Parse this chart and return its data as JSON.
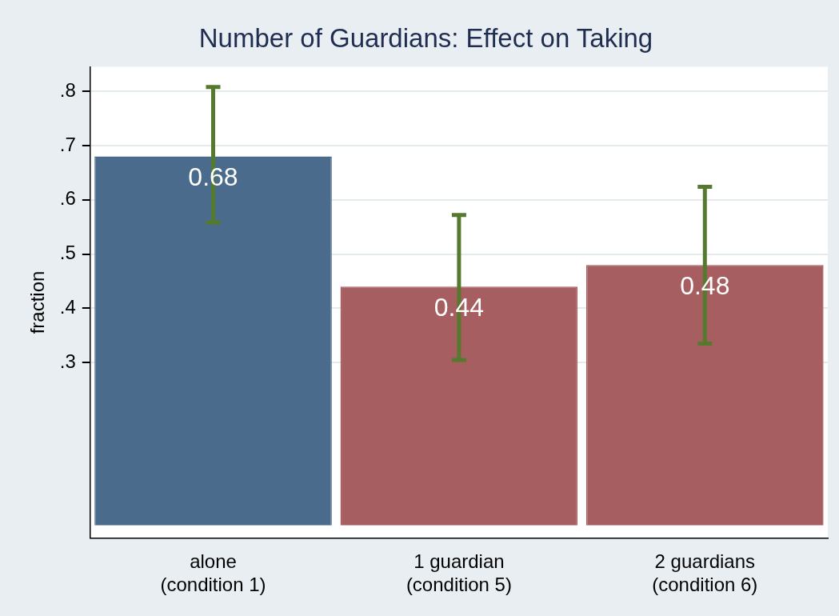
{
  "chart_data": {
    "type": "bar",
    "title": "Number of Guardians: Effect on Taking",
    "ylabel": "fraction",
    "categories": [
      "alone\n(condition 1)",
      "1 guardian\n(condition 5)",
      "2 guardians\n(condition 6)"
    ],
    "values": [
      0.68,
      0.44,
      0.48
    ],
    "colors": [
      "#4a6b8c",
      "#a65e61",
      "#a65e61"
    ],
    "errors": [
      [
        0.558,
        0.808
      ],
      [
        0.305,
        0.572
      ],
      [
        0.335,
        0.624
      ]
    ],
    "ylim": [
      -0.023,
      0.845
    ],
    "yticks": [
      {
        "value": 0.3,
        "label": ".3"
      },
      {
        "value": 0.4,
        "label": ".4"
      },
      {
        "value": 0.5,
        "label": ".5"
      },
      {
        "value": 0.6,
        "label": ".6"
      },
      {
        "value": 0.7,
        "label": ".7"
      },
      {
        "value": 0.8,
        "label": ".8"
      }
    ],
    "grid": "y",
    "legend": false,
    "data_labels": true
  }
}
